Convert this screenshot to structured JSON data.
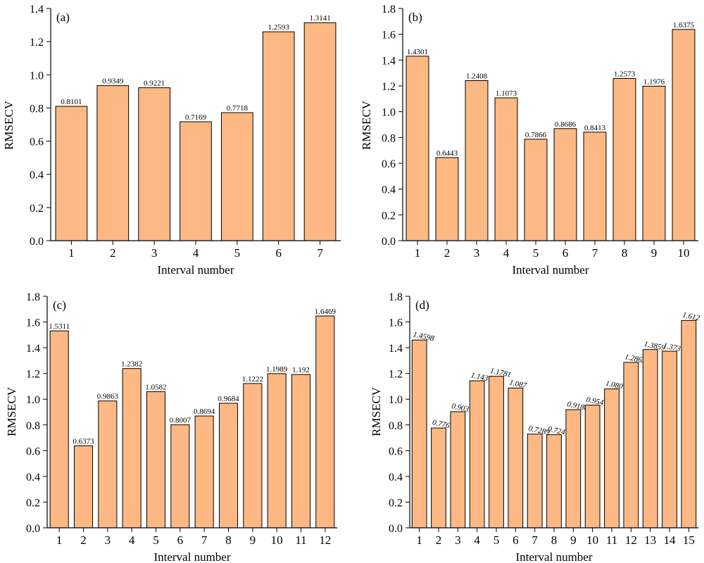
{
  "bar_fill": "#FDB883",
  "bar_stroke": "#000000",
  "chart_data": [
    {
      "panel": "(a)",
      "type": "bar",
      "xlabel": "Interval number",
      "ylabel": "RMSECV",
      "ylim": [
        0,
        1.4
      ],
      "yticks": [
        "0.0",
        "0.2",
        "0.4",
        "0.6",
        "0.8",
        "1.0",
        "1.2",
        "1.4"
      ],
      "categories": [
        "1",
        "2",
        "3",
        "4",
        "5",
        "6",
        "7"
      ],
      "values": [
        0.8101,
        0.9349,
        0.9221,
        0.7169,
        0.7718,
        1.2593,
        1.3141
      ],
      "labels": [
        "0.8101",
        "0.9349",
        "0.9221",
        "0.7169",
        "0.7718",
        "1.2593",
        "1.3141"
      ],
      "label_style": "upright"
    },
    {
      "panel": "(b)",
      "type": "bar",
      "xlabel": "Interval number",
      "ylabel": "RMSECV",
      "ylim": [
        0,
        1.8
      ],
      "yticks": [
        "0.0",
        "0.2",
        "0.4",
        "0.6",
        "0.8",
        "1.0",
        "1.2",
        "1.4",
        "1.6",
        "1.8"
      ],
      "categories": [
        "1",
        "2",
        "3",
        "4",
        "5",
        "6",
        "7",
        "8",
        "9",
        "10"
      ],
      "values": [
        1.4301,
        0.6443,
        1.2408,
        1.1073,
        0.7866,
        0.8686,
        0.8413,
        1.2573,
        1.1976,
        1.6375
      ],
      "labels": [
        "1.4301",
        "0.6443",
        "1.2408",
        "1.1073",
        "0.7866",
        "0.8686",
        "0.8413",
        "1.2573",
        "1.1976",
        "1.6375"
      ],
      "label_style": "upright"
    },
    {
      "panel": "(c)",
      "type": "bar",
      "xlabel": "Interval number",
      "ylabel": "RMSECV",
      "ylim": [
        0,
        1.8
      ],
      "yticks": [
        "0.0",
        "0.2",
        "0.4",
        "0.6",
        "0.8",
        "1.0",
        "1.2",
        "1.4",
        "1.6",
        "1.8"
      ],
      "categories": [
        "1",
        "2",
        "3",
        "4",
        "5",
        "6",
        "7",
        "8",
        "9",
        "10",
        "11",
        "12"
      ],
      "values": [
        1.5311,
        0.6373,
        0.9863,
        1.2382,
        1.0582,
        0.8007,
        0.8694,
        0.9684,
        1.1222,
        1.1989,
        1.192,
        1.6469
      ],
      "labels": [
        "1.5311",
        "0.6373",
        "0.9863",
        "1.2382",
        "1.0582",
        "0.8007",
        "0.8694",
        "0.9684",
        "1.1222",
        "1.1989",
        "1.192",
        "1.6469"
      ],
      "label_style": "upright"
    },
    {
      "panel": "(d)",
      "type": "bar",
      "xlabel": "Interval number",
      "ylabel": "RMSECV",
      "ylim": [
        0,
        1.8
      ],
      "yticks": [
        "0.0",
        "0.2",
        "0.4",
        "0.6",
        "0.8",
        "1.0",
        "1.2",
        "1.4",
        "1.6",
        "1.8"
      ],
      "categories": [
        "1",
        "2",
        "3",
        "4",
        "5",
        "6",
        "7",
        "8",
        "9",
        "10",
        "11",
        "12",
        "13",
        "14",
        "15"
      ],
      "values": [
        1.4598,
        0.776,
        0.903,
        1.143,
        1.1781,
        1.087,
        0.7289,
        0.724,
        0.9186,
        0.954,
        1.08,
        1.2863,
        1.3859,
        1.373,
        1.612
      ],
      "labels": [
        "1.4598",
        "0.776",
        "0.903",
        "1.143",
        "1.1781",
        "1.087",
        "0.7289",
        "0.724",
        "0.9186",
        "0.954",
        "1.080",
        "1.2863",
        "1.3859",
        "1.373",
        "1.612"
      ],
      "label_style": "italic-rotated"
    }
  ]
}
